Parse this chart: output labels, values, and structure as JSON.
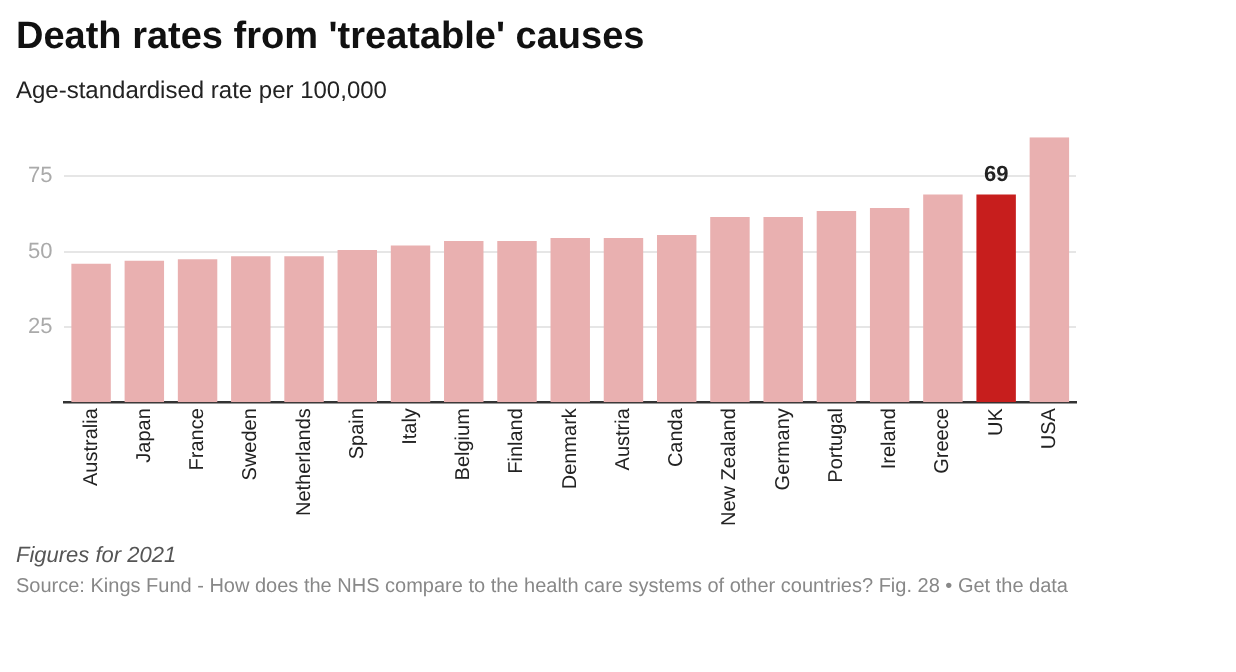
{
  "chart_data": {
    "type": "bar",
    "title": "Death rates from 'treatable' causes",
    "subtitle": "Age-standardised rate per 100,000",
    "categories": [
      "Australia",
      "Japan",
      "France",
      "Sweden",
      "Netherlands",
      "Spain",
      "Italy",
      "Belgium",
      "Finland",
      "Denmark",
      "Austria",
      "Canda",
      "New Zealand",
      "Germany",
      "Portugal",
      "Ireland",
      "Greece",
      "UK",
      "USA"
    ],
    "values": [
      46,
      47,
      47.5,
      48.5,
      48.5,
      50.5,
      52,
      53.5,
      53.5,
      54.5,
      54.5,
      55.5,
      61.5,
      61.5,
      63.5,
      64.5,
      69,
      69,
      88
    ],
    "colors": [
      "#e9b0b0",
      "#e9b0b0",
      "#e9b0b0",
      "#e9b0b0",
      "#e9b0b0",
      "#e9b0b0",
      "#e9b0b0",
      "#e9b0b0",
      "#e9b0b0",
      "#e9b0b0",
      "#e9b0b0",
      "#e9b0b0",
      "#e9b0b0",
      "#e9b0b0",
      "#e9b0b0",
      "#e9b0b0",
      "#e9b0b0",
      "#c71e1d",
      "#e9b0b0"
    ],
    "value_labels": [
      null,
      null,
      null,
      null,
      null,
      null,
      null,
      null,
      null,
      null,
      null,
      null,
      null,
      null,
      null,
      null,
      null,
      "69",
      null
    ],
    "ylim": [
      0,
      88
    ],
    "yticks": [
      25,
      50,
      75
    ],
    "grid": "y",
    "legend": false,
    "annotations": [
      "Figures for 2021",
      "Source: Kings Fund - How does the NHS compare to the health care systems of other countries? Fig. 28 • Get the data"
    ]
  }
}
